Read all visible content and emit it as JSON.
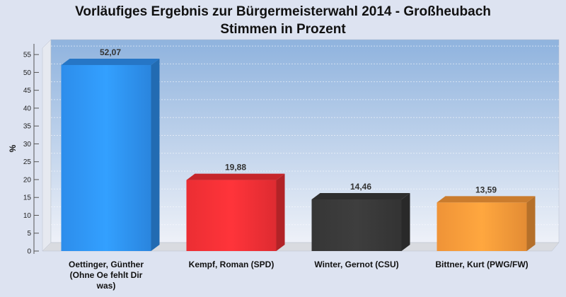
{
  "chart_data": {
    "type": "bar",
    "title": "Vorläufiges Ergebnis zur Bürgermeisterwahl 2014 - Großheubach",
    "subtitle": "Stimmen in Prozent",
    "ylabel": "%",
    "xlabel": "",
    "ylim": [
      0,
      58
    ],
    "yticks": [
      0,
      5,
      10,
      15,
      20,
      25,
      30,
      35,
      40,
      45,
      50,
      55
    ],
    "grid": true,
    "categories": [
      [
        "Oettinger, Günther",
        "(Ohne Oe fehlt Dir",
        "was)"
      ],
      [
        "Kempf, Roman (SPD)"
      ],
      [
        "Winter, Gernot (CSU)"
      ],
      [
        "Bittner, Kurt (PWG/FW)"
      ]
    ],
    "values": [
      52.07,
      19.88,
      14.46,
      13.59
    ],
    "value_labels": [
      "52,07",
      "19,88",
      "14,46",
      "13,59"
    ],
    "colors": [
      "#2f94f7",
      "#f73036",
      "#393939",
      "#fc9b3a"
    ]
  }
}
